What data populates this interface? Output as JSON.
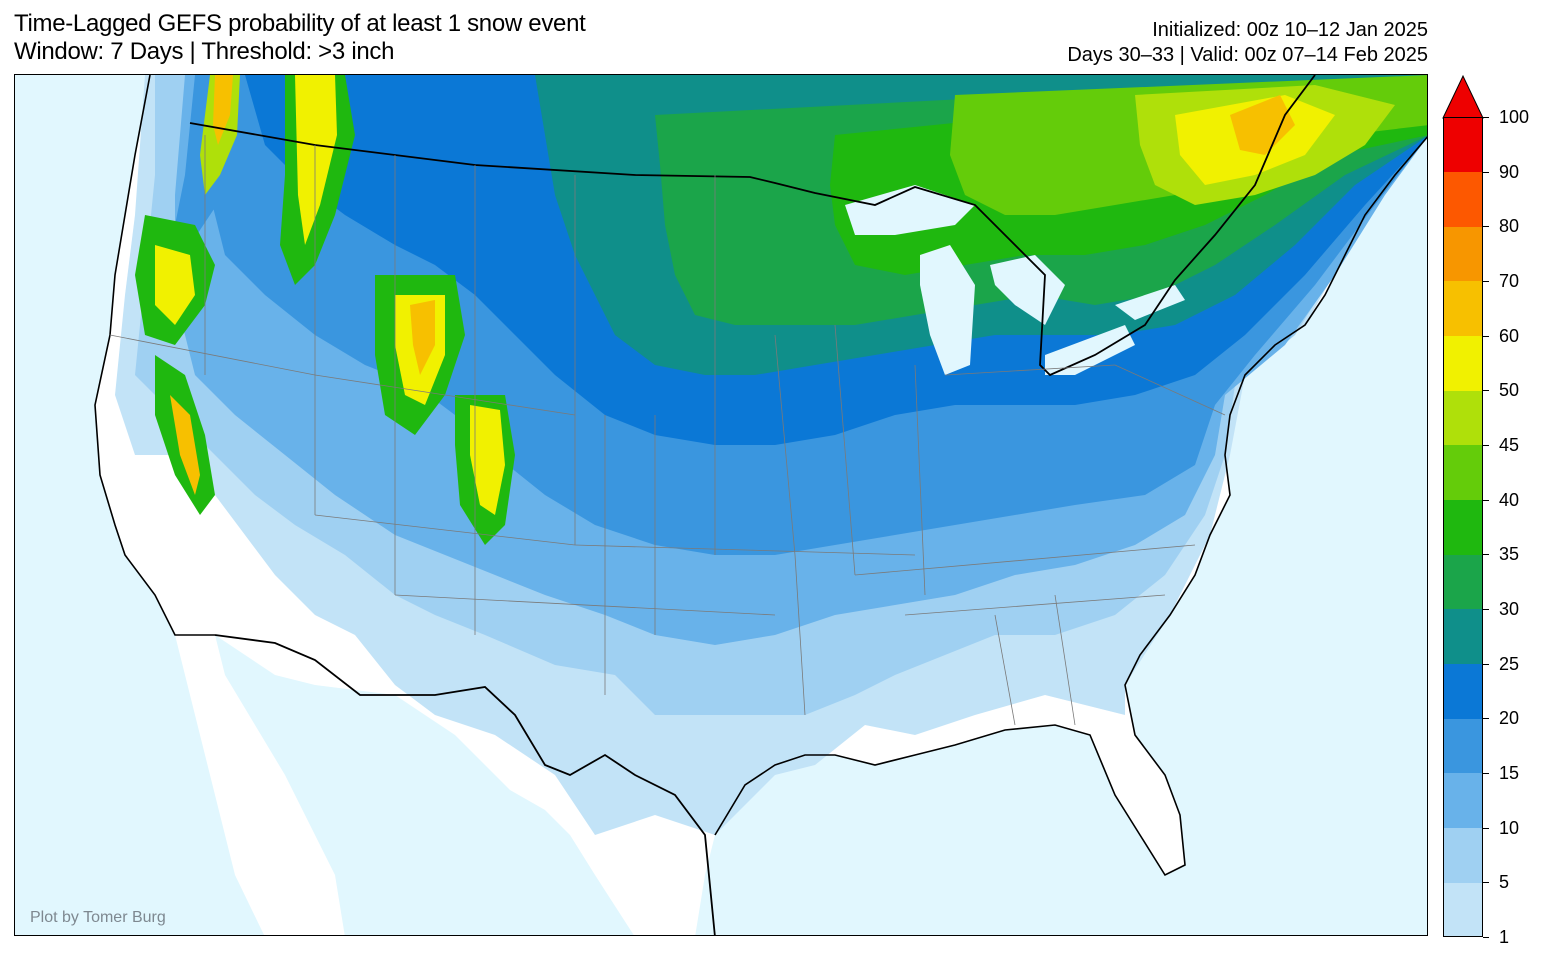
{
  "header": {
    "title_line1": "Time-Lagged GEFS probability of at least 1 snow event",
    "title_line2": "Window: 7 Days | Threshold: >3 inch",
    "init_line": "Initialized: 00z 10–12 Jan 2025",
    "valid_line": "Days 30–33 | Valid: 00z 07–14 Feb 2025"
  },
  "credit": "Plot by Tomer Burg",
  "colors": {
    "ocean": "#e1f7fe",
    "land": "#ffffff",
    "border": "#000000",
    "state_lines": "#7a7a7a"
  },
  "colorbar": {
    "levels": [
      {
        "label": "1",
        "color": "#c2e3f7"
      },
      {
        "label": "5",
        "color": "#9fd0f2"
      },
      {
        "label": "10",
        "color": "#68b2ea"
      },
      {
        "label": "15",
        "color": "#3a96df"
      },
      {
        "label": "20",
        "color": "#0b78d6"
      },
      {
        "label": "25",
        "color": "#0f8f8a"
      },
      {
        "label": "30",
        "color": "#1ba54a"
      },
      {
        "label": "35",
        "color": "#1fb80f"
      },
      {
        "label": "40",
        "color": "#64cc0a"
      },
      {
        "label": "45",
        "color": "#afe00a"
      },
      {
        "label": "50",
        "color": "#f1f100"
      },
      {
        "label": "60",
        "color": "#f7c000"
      },
      {
        "label": "70",
        "color": "#f79600"
      },
      {
        "label": "80",
        "color": "#fd5800"
      },
      {
        "label": "90",
        "color": "#ee0000"
      },
      {
        "label": "100",
        "color": "#ee0000"
      }
    ],
    "extend": "max"
  }
}
